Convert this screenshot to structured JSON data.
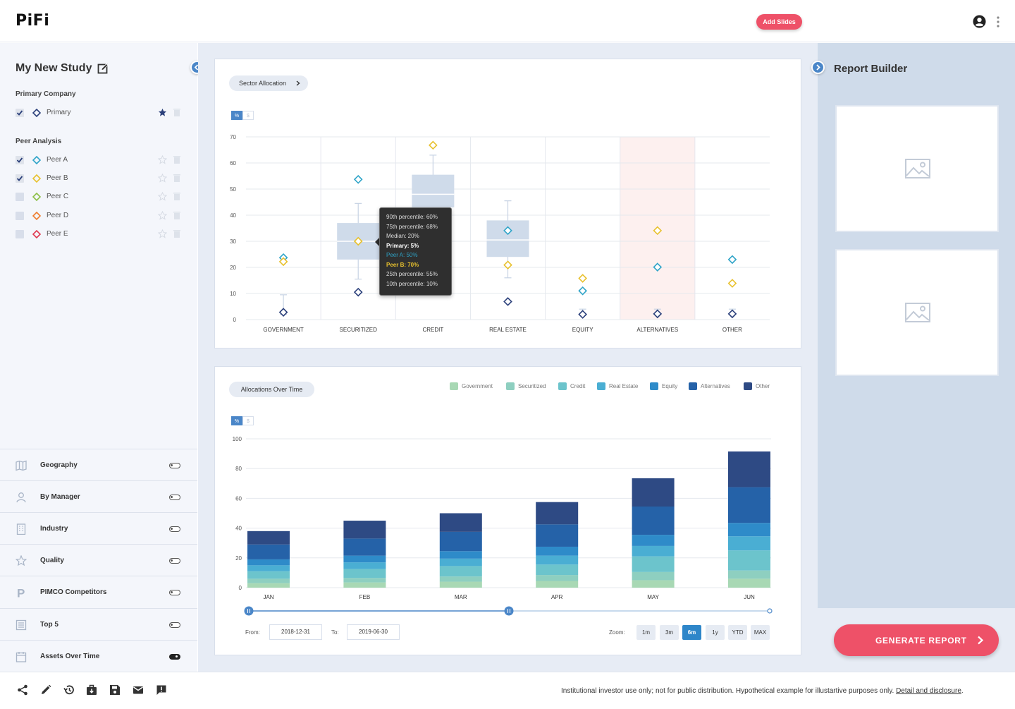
{
  "app": {
    "name": "PiFi",
    "add_slides": "Add Slides"
  },
  "study": {
    "title": "My New Study",
    "primary_heading": "Primary Company",
    "peer_heading": "Peer Analysis",
    "primary": {
      "label": "Primary",
      "checked": true,
      "color": "#2a3f7a"
    },
    "peers": [
      {
        "label": "Peer A",
        "checked": true,
        "color": "#2fa4c8"
      },
      {
        "label": "Peer B",
        "checked": true,
        "color": "#e8c12e"
      },
      {
        "label": "Peer C",
        "checked": false,
        "color": "#8bbf45"
      },
      {
        "label": "Peer D",
        "checked": false,
        "color": "#ef7b2d"
      },
      {
        "label": "Peer E",
        "checked": false,
        "color": "#e0384f"
      }
    ]
  },
  "filters": [
    {
      "label": "Geography",
      "icon": "map-icon",
      "on": false
    },
    {
      "label": "By Manager",
      "icon": "person-icon",
      "on": false
    },
    {
      "label": "Industry",
      "icon": "building-icon",
      "on": false
    },
    {
      "label": "Quality",
      "icon": "star-icon",
      "on": false
    },
    {
      "label": "PIMCO Competitors",
      "icon": "pimco-p-icon",
      "on": false
    },
    {
      "label": "Top 5",
      "icon": "list-icon",
      "on": false
    },
    {
      "label": "Assets Over Time",
      "icon": "calendar-icon",
      "on": true
    }
  ],
  "sector_chart": {
    "pill_label": "Sector Allocation",
    "units": [
      "%",
      "$"
    ],
    "tooltip": [
      "90th percentile: 60%",
      "75th percentile: 68%",
      "Median: 20%",
      "Primary: 5%",
      "Peer A: 50%",
      "Peer B: 70%",
      "25th percentile: 55%",
      "10th percentile: 10%"
    ]
  },
  "time_chart": {
    "pill_label": "Allocations Over Time",
    "units": [
      "%",
      "$"
    ],
    "from_label": "From:",
    "from_value": "2018-12-31",
    "to_label": "To:",
    "to_value": "2019-06-30",
    "zoom_label": "Zoom:",
    "zoom_options": [
      "1m",
      "3m",
      "6m",
      "1y",
      "YTD",
      "MAX"
    ],
    "zoom_active": "6m"
  },
  "chart_data": [
    {
      "type": "box",
      "yticks": [
        0,
        10,
        20,
        30,
        40,
        50,
        60,
        70
      ],
      "ylim": [
        0,
        70
      ],
      "categories": [
        "GOVERNMENT",
        "SECURITIZED",
        "CREDIT",
        "REAL ESTATE",
        "EQUITY",
        "ALTERNATIVES",
        "OTHER"
      ],
      "highlighted_category": "ALTERNATIVES",
      "boxes": [
        {
          "category": "GOVERNMENT",
          "whisker_low": 2,
          "q1": 2,
          "median": 2,
          "q3": 2,
          "whisker_high": 9.5
        },
        {
          "category": "SECURITIZED",
          "whisker_low": 15.5,
          "q1": 23,
          "median": 30,
          "q3": 37,
          "whisker_high": 44.5
        },
        {
          "category": "CREDIT",
          "whisker_low": 40,
          "q1": 43,
          "median": 48,
          "q3": 55.5,
          "whisker_high": 63
        },
        {
          "category": "REAL ESTATE",
          "whisker_low": 16,
          "q1": 24,
          "median": 30.5,
          "q3": 38,
          "whisker_high": 45.5
        },
        {
          "category": "EQUITY",
          "whisker_low": 2,
          "q1": 2,
          "median": 2,
          "q3": 2,
          "whisker_high": 4
        },
        {
          "category": "ALTERNATIVES",
          "whisker_low": 2,
          "q1": 2,
          "median": 2,
          "q3": 2,
          "whisker_high": 4
        },
        {
          "category": "OTHER",
          "whisker_low": 2,
          "q1": 2,
          "median": 2,
          "q3": 2,
          "whisker_high": 4
        }
      ],
      "series": [
        {
          "name": "Primary",
          "color": "#2a3f7a",
          "values": [
            2.8,
            10.5,
            null,
            6.9,
            2,
            2.2,
            2.2
          ]
        },
        {
          "name": "Peer A",
          "color": "#2fa4c8",
          "values": [
            23.7,
            53.7,
            null,
            34.1,
            11,
            20.1,
            23
          ]
        },
        {
          "name": "Peer B",
          "color": "#e8c12e",
          "values": [
            22.2,
            30,
            66.8,
            20.9,
            15.8,
            34.1,
            13.9
          ]
        }
      ]
    },
    {
      "type": "bar",
      "stacked": true,
      "yticks": [
        0,
        20,
        40,
        60,
        80,
        100
      ],
      "ylim": [
        0,
        100
      ],
      "categories": [
        "JAN",
        "FEB",
        "MAR",
        "APR",
        "MAY",
        "JUN"
      ],
      "series": [
        {
          "name": "Government",
          "color": "#a8d8b4",
          "values": [
            3,
            3.5,
            4,
            4.5,
            5,
            6
          ]
        },
        {
          "name": "Securitized",
          "color": "#8ecfc0",
          "values": [
            3,
            3,
            3.5,
            4,
            5.5,
            5.5
          ]
        },
        {
          "name": "Credit",
          "color": "#6cc4cc",
          "values": [
            5,
            6,
            7,
            7,
            10.5,
            13.5
          ]
        },
        {
          "name": "Real Estate",
          "color": "#4aaed3",
          "values": [
            4,
            4.5,
            5,
            6,
            7,
            9.5
          ]
        },
        {
          "name": "Equity",
          "color": "#2e8bc9",
          "values": [
            4,
            4.5,
            5,
            6,
            7.5,
            9
          ]
        },
        {
          "name": "Alternatives",
          "color": "#2562a8",
          "values": [
            10,
            11.5,
            13,
            15,
            19,
            24
          ]
        },
        {
          "name": "Other",
          "color": "#2e4a84",
          "values": [
            9,
            12,
            12.5,
            15,
            19,
            24
          ]
        }
      ]
    }
  ],
  "report_builder": {
    "title": "Report Builder",
    "generate": "GENERATE REPORT"
  },
  "footer": {
    "disclaimer": "Institutional investor use only; not for public distribution. Hypothetical example for illustartive purposes only.",
    "link": "Detail and disclosure",
    "period": "."
  }
}
